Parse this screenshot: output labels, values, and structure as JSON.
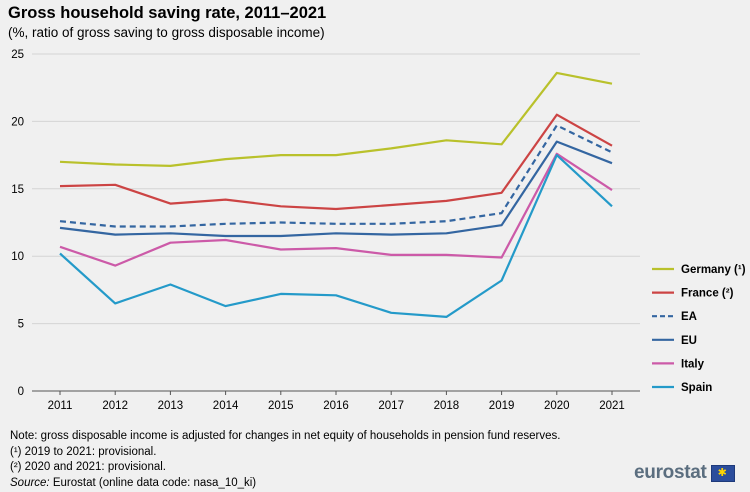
{
  "header": {
    "title": "Gross household saving rate, 2011–2021",
    "subtitle": "(%, ratio of gross saving to gross disposable income)"
  },
  "chart_data": {
    "type": "line",
    "title": "Gross household saving rate, 2011–2021",
    "subtitle": "(%, ratio of gross saving to gross disposable income)",
    "xlabel": "",
    "ylabel": "",
    "ylim": [
      0,
      25
    ],
    "yticks": [
      0,
      5,
      10,
      15,
      20,
      25
    ],
    "grid": true,
    "legend_position": "right",
    "categories": [
      "2011",
      "2012",
      "2013",
      "2014",
      "2015",
      "2016",
      "2017",
      "2018",
      "2019",
      "2020",
      "2021"
    ],
    "series": [
      {
        "name": "Germany (¹)",
        "key": "germany",
        "color": "#b9c12b",
        "dashed": false,
        "values": [
          17.0,
          16.8,
          16.7,
          17.2,
          17.5,
          17.5,
          18.0,
          18.6,
          18.3,
          23.6,
          22.8
        ]
      },
      {
        "name": "France (²)",
        "key": "france",
        "color": "#cc4444",
        "dashed": false,
        "values": [
          15.2,
          15.3,
          13.9,
          14.2,
          13.7,
          13.5,
          13.8,
          14.1,
          14.7,
          20.5,
          18.2
        ]
      },
      {
        "name": "EA",
        "key": "ea",
        "color": "#3466a1",
        "dashed": true,
        "values": [
          12.6,
          12.2,
          12.2,
          12.4,
          12.5,
          12.4,
          12.4,
          12.6,
          13.2,
          19.7,
          17.7
        ]
      },
      {
        "name": "EU",
        "key": "eu",
        "color": "#3466a1",
        "dashed": false,
        "values": [
          12.1,
          11.6,
          11.7,
          11.5,
          11.5,
          11.7,
          11.6,
          11.7,
          12.3,
          18.5,
          16.9
        ]
      },
      {
        "name": "Italy",
        "key": "italy",
        "color": "#cc5aa8",
        "dashed": false,
        "values": [
          10.7,
          9.3,
          11.0,
          11.2,
          10.5,
          10.6,
          10.1,
          10.1,
          9.9,
          17.6,
          14.9
        ]
      },
      {
        "name": "Spain",
        "key": "spain",
        "color": "#249ac9",
        "dashed": false,
        "values": [
          10.2,
          6.5,
          7.9,
          6.3,
          7.2,
          7.1,
          5.8,
          5.5,
          8.2,
          17.5,
          13.7
        ]
      }
    ]
  },
  "notes": {
    "line1": "Note: gross disposable income is adjusted for changes in net equity of households in pension fund reserves.",
    "line2": "(¹) 2019 to 2021: provisional.",
    "line3": "(²) 2020 and 2021: provisional.",
    "source_label": "Source:",
    "source_text": " Eurostat (online data code: nasa_10_ki)"
  },
  "logo": {
    "text": "eurostat"
  }
}
